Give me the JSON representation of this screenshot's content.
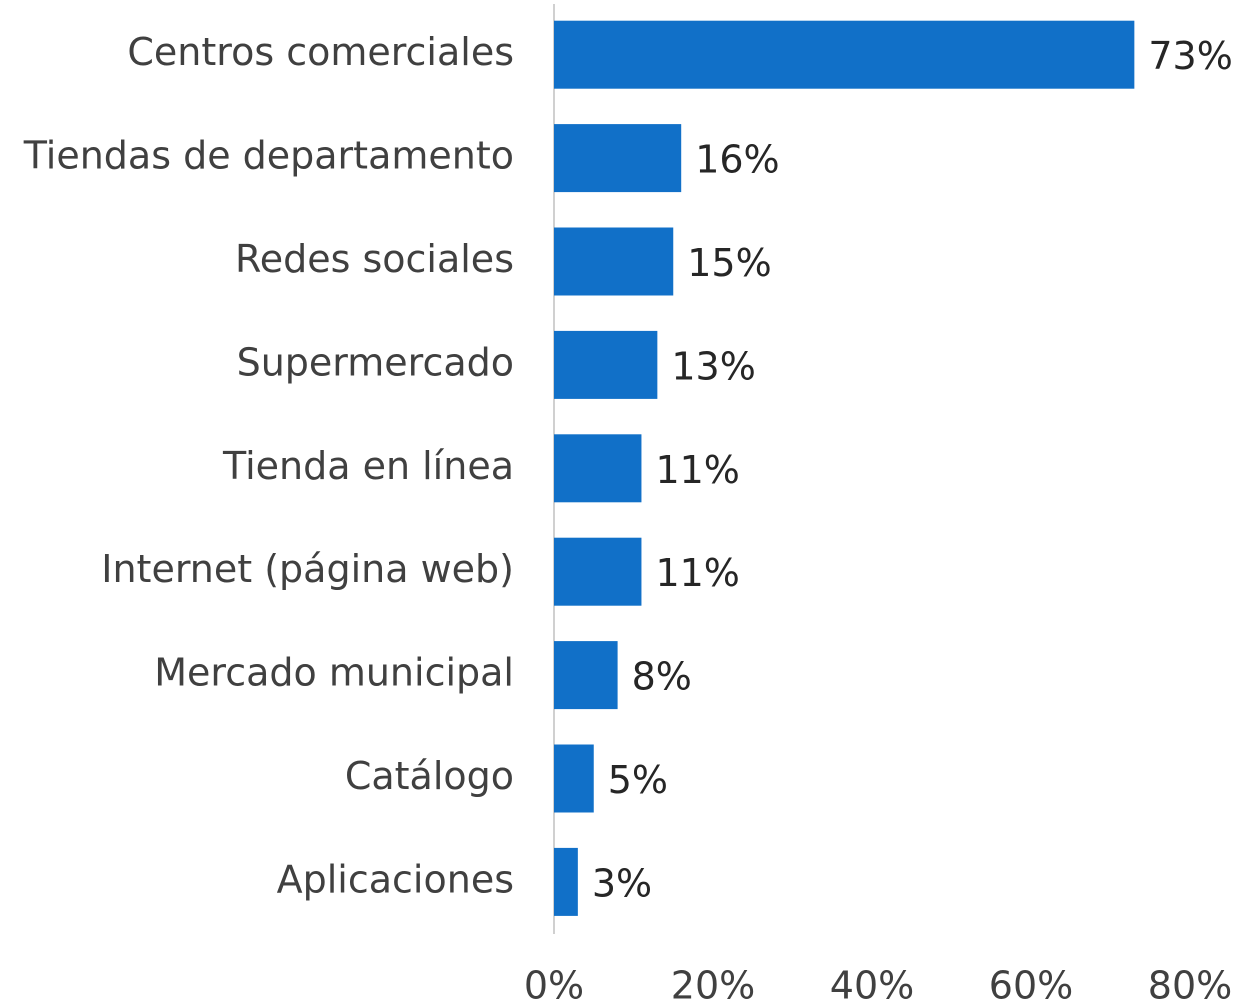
{
  "chart_data": {
    "type": "bar",
    "orientation": "horizontal",
    "categories": [
      "Centros comerciales",
      "Tiendas de departamento",
      "Redes sociales",
      "Supermercado",
      "Tienda en línea",
      "Internet (página web)",
      "Mercado municipal",
      "Catálogo",
      "Aplicaciones"
    ],
    "values": [
      73,
      16,
      15,
      13,
      11,
      11,
      8,
      5,
      3
    ],
    "value_labels": [
      "73%",
      "16%",
      "15%",
      "13%",
      "11%",
      "11%",
      "8%",
      "5%",
      "3%"
    ],
    "color": "#1170c8",
    "xlim": [
      0,
      80
    ],
    "xticks": [
      {
        "value": 0,
        "label": "0%"
      },
      {
        "value": 20,
        "label": "20%"
      },
      {
        "value": 40,
        "label": "40%"
      },
      {
        "value": 60,
        "label": "60%"
      },
      {
        "value": 80,
        "label": "80%"
      }
    ],
    "grid": false
  }
}
